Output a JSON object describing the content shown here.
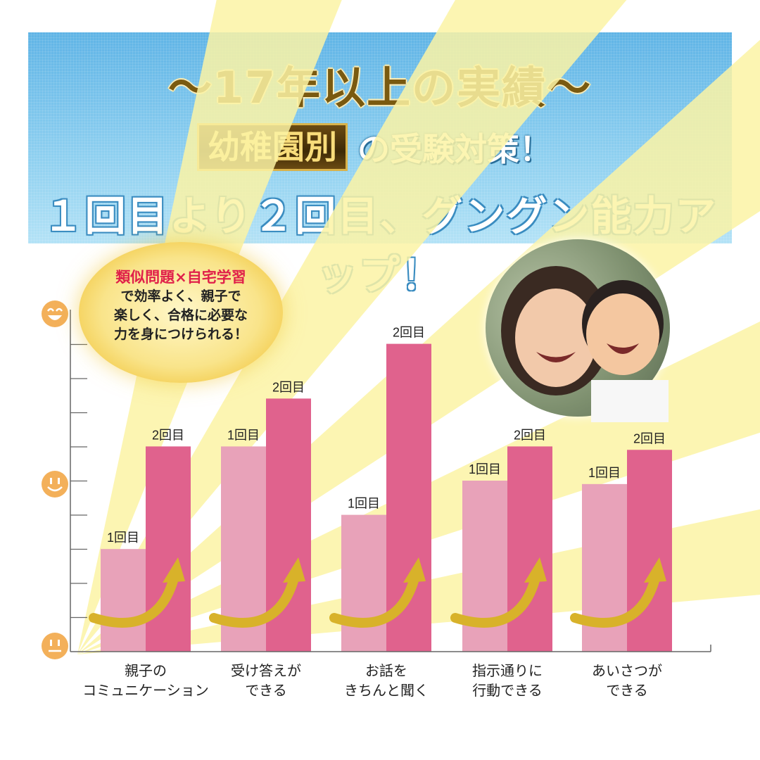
{
  "banner": {
    "title": "〜17年以上の実績〜",
    "highlight": "幼稚園別",
    "subtitle_rest": "の受験対策！",
    "line3": "１回目より２回目、グングン能力アップ！"
  },
  "callout": {
    "heading": "類似問題×自宅学習",
    "lines": [
      "で効率よく、親子で",
      "楽しく、合格に必要な",
      "力を身につけられる！"
    ]
  },
  "colors": {
    "round1": "#e8a2b9",
    "round2": "#e0628d",
    "rays": "#fbf3a4",
    "arrow": "#d8b22a",
    "face": "#f3b05a"
  },
  "icons": {
    "y_axis_top": "laughing-face-icon",
    "y_axis_middle": "smiling-face-icon",
    "y_axis_bottom": "neutral-face-icon",
    "growth_arrow": "curved-up-arrow-icon",
    "photo": "mother-and-child-photo"
  },
  "chart_data": {
    "type": "bar",
    "categories": [
      [
        "親子の",
        "コミュニケーション"
      ],
      [
        "受け答えが",
        "できる"
      ],
      [
        "お話を",
        "きちんと聞く"
      ],
      [
        "指示通りに",
        "行動できる"
      ],
      [
        "あいさつが",
        "できる"
      ]
    ],
    "series": [
      {
        "name": "1回目",
        "values": [
          3.0,
          6.0,
          4.0,
          5.0,
          4.9
        ]
      },
      {
        "name": "2回目",
        "values": [
          6.0,
          7.4,
          9.0,
          6.0,
          5.9
        ]
      }
    ],
    "ylim": [
      0,
      10
    ],
    "data_labels": [
      "1回目",
      "2回目"
    ],
    "grid": false
  }
}
